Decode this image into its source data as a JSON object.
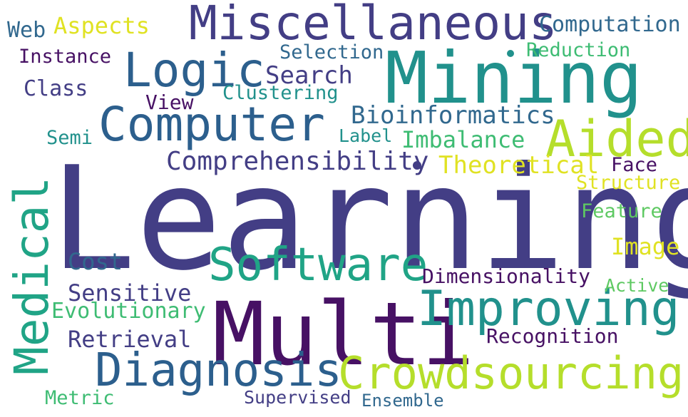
{
  "palette": {
    "background": "#ffffff",
    "dark_purple": "#471164",
    "indigo": "#433e85",
    "blue": "#2c5f8d",
    "steel_blue": "#31688e",
    "teal": "#21918c",
    "sea_green": "#20a486",
    "green": "#3ebc73",
    "light_green": "#5ec962",
    "lime": "#b5de2b",
    "yellow": "#e0e223"
  },
  "words": {
    "learning": "Learning",
    "multi": "Multi",
    "miscellaneous": "Miscellaneous",
    "mining": "Mining",
    "logic": "Logic",
    "computer": "Computer",
    "aided": "Aided",
    "software": "Software",
    "improving": "Improving",
    "diagnosis": "Diagnosis",
    "crowdsourcing": "Crowdsourcing",
    "medical": "Medical",
    "comprehensibility": "Comprehensibility",
    "bioinformatics": "Bioinformatics",
    "theoretical": "Theoretical",
    "imbalance": "Imbalance",
    "search": "Search",
    "computation": "Computation",
    "aspects": "Aspects",
    "web": "Web",
    "instance": "Instance",
    "class": "Class",
    "selection": "Selection",
    "reduction": "Reduction",
    "clustering": "Clustering",
    "view": "View",
    "semi": "Semi",
    "label": "Label",
    "face": "Face",
    "structure": "Structure",
    "feature": "Feature",
    "image": "Image",
    "cost": "Cost",
    "dimensionality": "Dimensionality",
    "active": "Active",
    "sensitive": "Sensitive",
    "evolutionary": "Evolutionary",
    "retrieval": "Retrieval",
    "recognition": "Recognition",
    "metric": "Metric",
    "supervised": "Supervised",
    "ensemble": "Ensemble"
  }
}
